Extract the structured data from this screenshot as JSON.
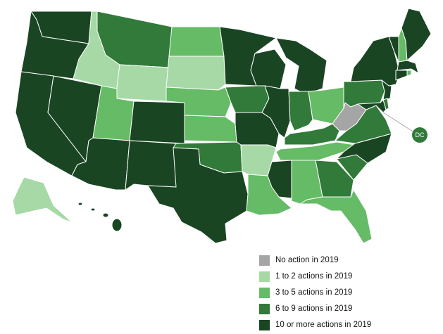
{
  "colors": {
    "none": "#a5a5a5",
    "one_two": "#a6d9a6",
    "three_five": "#66bb66",
    "six_nine": "#317a3a",
    "ten_plus": "#1a4523"
  },
  "legend": [
    {
      "label": "No action in 2019",
      "color": "#a5a5a5"
    },
    {
      "label": "1 to 2 actions in 2019",
      "color": "#a6d9a6"
    },
    {
      "label": "3 to 5 actions in 2019",
      "color": "#66bb66"
    },
    {
      "label": "6 to 9 actions in 2019",
      "color": "#317a3a"
    },
    {
      "label": "10 or more actions in 2019",
      "color": "#1a4523"
    }
  ],
  "dc_label": "DC",
  "states": {
    "WA": "ten_plus",
    "OR": "ten_plus",
    "CA": "ten_plus",
    "NV": "ten_plus",
    "ID": "one_two",
    "MT": "six_nine",
    "WY": "one_two",
    "UT": "three_five",
    "AZ": "ten_plus",
    "CO": "ten_plus",
    "NM": "ten_plus",
    "ND": "three_five",
    "SD": "one_two",
    "NE": "three_five",
    "KS": "three_five",
    "OK": "six_nine",
    "TX": "ten_plus",
    "MN": "ten_plus",
    "IA": "six_nine",
    "MO": "ten_plus",
    "AR": "one_two",
    "LA": "three_five",
    "WI": "ten_plus",
    "IL": "ten_plus",
    "MI": "ten_plus",
    "IN": "six_nine",
    "OH": "three_five",
    "KY": "six_nine",
    "TN": "three_five",
    "MS": "ten_plus",
    "AL": "three_five",
    "GA": "six_nine",
    "FL": "three_five",
    "SC": "six_nine",
    "NC": "ten_plus",
    "VA": "six_nine",
    "WV": "none",
    "PA": "six_nine",
    "NY": "ten_plus",
    "VT": "ten_plus",
    "NH": "three_five",
    "ME": "ten_plus",
    "MA": "ten_plus",
    "RI": "three_five",
    "CT": "ten_plus",
    "NJ": "ten_plus",
    "DE": "six_nine",
    "MD": "ten_plus",
    "AK": "one_two",
    "HI": "ten_plus",
    "DC": "six_nine"
  }
}
